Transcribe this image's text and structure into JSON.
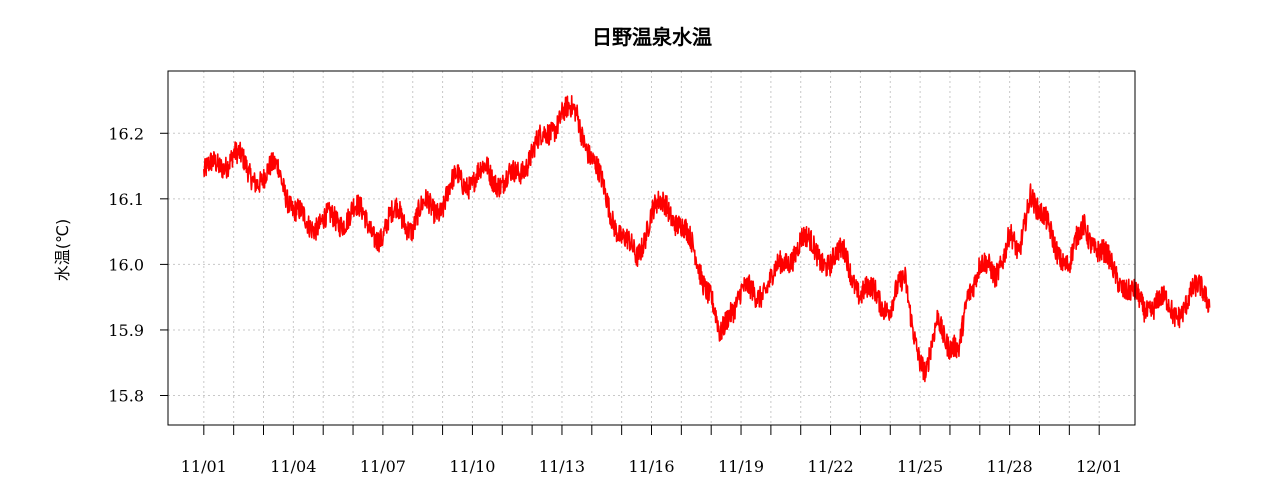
{
  "chart_data": {
    "type": "line",
    "title": "日野温泉水温",
    "xlabel": "",
    "ylabel": "水温(℃)",
    "x_tick_labels": [
      "11/01",
      "11/04",
      "11/07",
      "11/10",
      "11/13",
      "11/16",
      "11/19",
      "11/22",
      "11/25",
      "11/28",
      "12/01"
    ],
    "x_range_days": [
      -1.2,
      31.2
    ],
    "y_ticks": [
      15.8,
      15.9,
      16.0,
      16.1,
      16.2
    ],
    "y_tick_labels": [
      "15.8",
      "15.9",
      "16.0",
      "16.1",
      "16.2"
    ],
    "ylim": [
      15.755,
      16.295
    ],
    "grid": true,
    "legend": "none",
    "series": [
      {
        "color": "#ff0000",
        "band_amplitude": 0.035,
        "points": [
          {
            "day": 0.0,
            "value": 16.14
          },
          {
            "day": 0.5,
            "value": 16.15
          },
          {
            "day": 1.0,
            "value": 16.17
          },
          {
            "day": 1.5,
            "value": 16.14
          },
          {
            "day": 2.0,
            "value": 16.13
          },
          {
            "day": 2.5,
            "value": 16.15
          },
          {
            "day": 3.0,
            "value": 16.08
          },
          {
            "day": 3.5,
            "value": 16.06
          },
          {
            "day": 4.0,
            "value": 16.07
          },
          {
            "day": 4.5,
            "value": 16.06
          },
          {
            "day": 5.0,
            "value": 16.09
          },
          {
            "day": 5.5,
            "value": 16.06
          },
          {
            "day": 6.0,
            "value": 16.04
          },
          {
            "day": 6.5,
            "value": 16.09
          },
          {
            "day": 7.0,
            "value": 16.05
          },
          {
            "day": 7.5,
            "value": 16.1
          },
          {
            "day": 8.0,
            "value": 16.08
          },
          {
            "day": 8.5,
            "value": 16.14
          },
          {
            "day": 9.0,
            "value": 16.12
          },
          {
            "day": 9.5,
            "value": 16.15
          },
          {
            "day": 10.0,
            "value": 16.12
          },
          {
            "day": 10.5,
            "value": 16.14
          },
          {
            "day": 11.0,
            "value": 16.17
          },
          {
            "day": 11.5,
            "value": 16.2
          },
          {
            "day": 12.0,
            "value": 16.23
          },
          {
            "day": 12.5,
            "value": 16.23
          },
          {
            "day": 13.0,
            "value": 16.16
          },
          {
            "day": 13.5,
            "value": 16.1
          },
          {
            "day": 14.0,
            "value": 16.04
          },
          {
            "day": 14.5,
            "value": 16.01
          },
          {
            "day": 15.0,
            "value": 16.08
          },
          {
            "day": 15.5,
            "value": 16.09
          },
          {
            "day": 16.0,
            "value": 16.06
          },
          {
            "day": 16.5,
            "value": 16.01
          },
          {
            "day": 17.0,
            "value": 15.95
          },
          {
            "day": 17.3,
            "value": 15.88
          },
          {
            "day": 17.6,
            "value": 15.93
          },
          {
            "day": 18.0,
            "value": 15.96
          },
          {
            "day": 18.5,
            "value": 15.95
          },
          {
            "day": 19.0,
            "value": 15.98
          },
          {
            "day": 19.5,
            "value": 16.0
          },
          {
            "day": 20.0,
            "value": 16.04
          },
          {
            "day": 20.5,
            "value": 16.02
          },
          {
            "day": 21.0,
            "value": 16.0
          },
          {
            "day": 21.5,
            "value": 16.02
          },
          {
            "day": 22.0,
            "value": 15.95
          },
          {
            "day": 22.5,
            "value": 15.96
          },
          {
            "day": 23.0,
            "value": 15.93
          },
          {
            "day": 23.5,
            "value": 15.98
          },
          {
            "day": 24.0,
            "value": 15.85
          },
          {
            "day": 24.2,
            "value": 15.82
          },
          {
            "day": 24.6,
            "value": 15.93
          },
          {
            "day": 25.0,
            "value": 15.87
          },
          {
            "day": 25.3,
            "value": 15.86
          },
          {
            "day": 25.6,
            "value": 15.96
          },
          {
            "day": 26.0,
            "value": 16.0
          },
          {
            "day": 26.5,
            "value": 15.98
          },
          {
            "day": 27.0,
            "value": 16.05
          },
          {
            "day": 27.3,
            "value": 16.0
          },
          {
            "day": 27.7,
            "value": 16.12
          },
          {
            "day": 28.0,
            "value": 16.08
          },
          {
            "day": 28.5,
            "value": 16.03
          },
          {
            "day": 29.0,
            "value": 16.0
          },
          {
            "day": 29.5,
            "value": 16.06
          },
          {
            "day": 30.0,
            "value": 16.02
          },
          {
            "day": 30.5,
            "value": 15.99
          },
          {
            "day": 31.0,
            "value": 15.96
          },
          {
            "day": 31.5,
            "value": 15.93
          },
          {
            "day": 32.0,
            "value": 15.95
          },
          {
            "day": 32.5,
            "value": 15.92
          },
          {
            "day": 33.0,
            "value": 15.95
          },
          {
            "day": 33.4,
            "value": 15.96
          },
          {
            "day": 33.7,
            "value": 15.95
          }
        ]
      }
    ]
  }
}
